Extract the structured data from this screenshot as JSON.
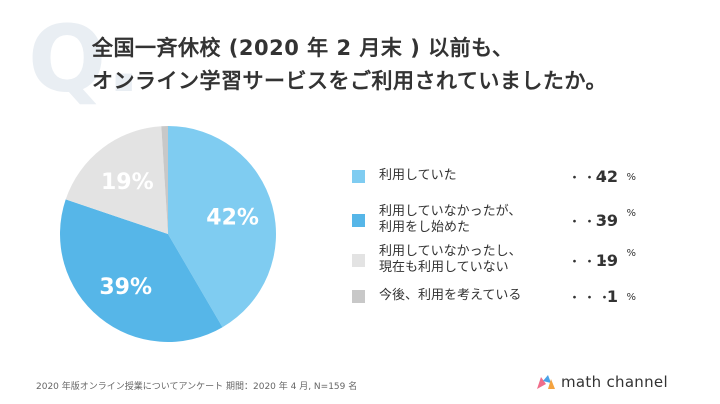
{
  "question": {
    "mark": "Q.",
    "line1": "全国一斉休校 (2020 年 2 月末 ) 以前も、",
    "line2": "オンライン学習サービスをご利用されていましたか。"
  },
  "legend": {
    "dots": "・・・",
    "unit": "%",
    "items": [
      {
        "label": "利用していた",
        "value": "42",
        "color": "#7fccf1"
      },
      {
        "label": "利用していなかったが、\n利用をし始めた",
        "value": "39",
        "color": "#56b6e8"
      },
      {
        "label": "利用していなかったし、\n現在も利用していない",
        "value": "19",
        "color": "#e3e3e3"
      },
      {
        "label": "今後、利用を考えている",
        "value": "1",
        "color": "#c8c8c8"
      }
    ]
  },
  "chart_data": {
    "type": "pie",
    "categories": [
      "利用していた",
      "利用していなかったが、利用をし始めた",
      "利用していなかったし、現在も利用していない",
      "今後、利用を考えている"
    ],
    "values": [
      42,
      39,
      19,
      1
    ],
    "slice_labels": [
      "42%",
      "39%",
      "19%",
      ""
    ],
    "colors": [
      "#7fccf1",
      "#56b6e8",
      "#e3e3e3",
      "#c8c8c8"
    ]
  },
  "footnote": "2020 年版オンライン授業についてアンケート 期間：2020 年 4 月, N=159 名",
  "brand": {
    "name": "math channel",
    "logo_icon": "math-channel-m-icon"
  }
}
